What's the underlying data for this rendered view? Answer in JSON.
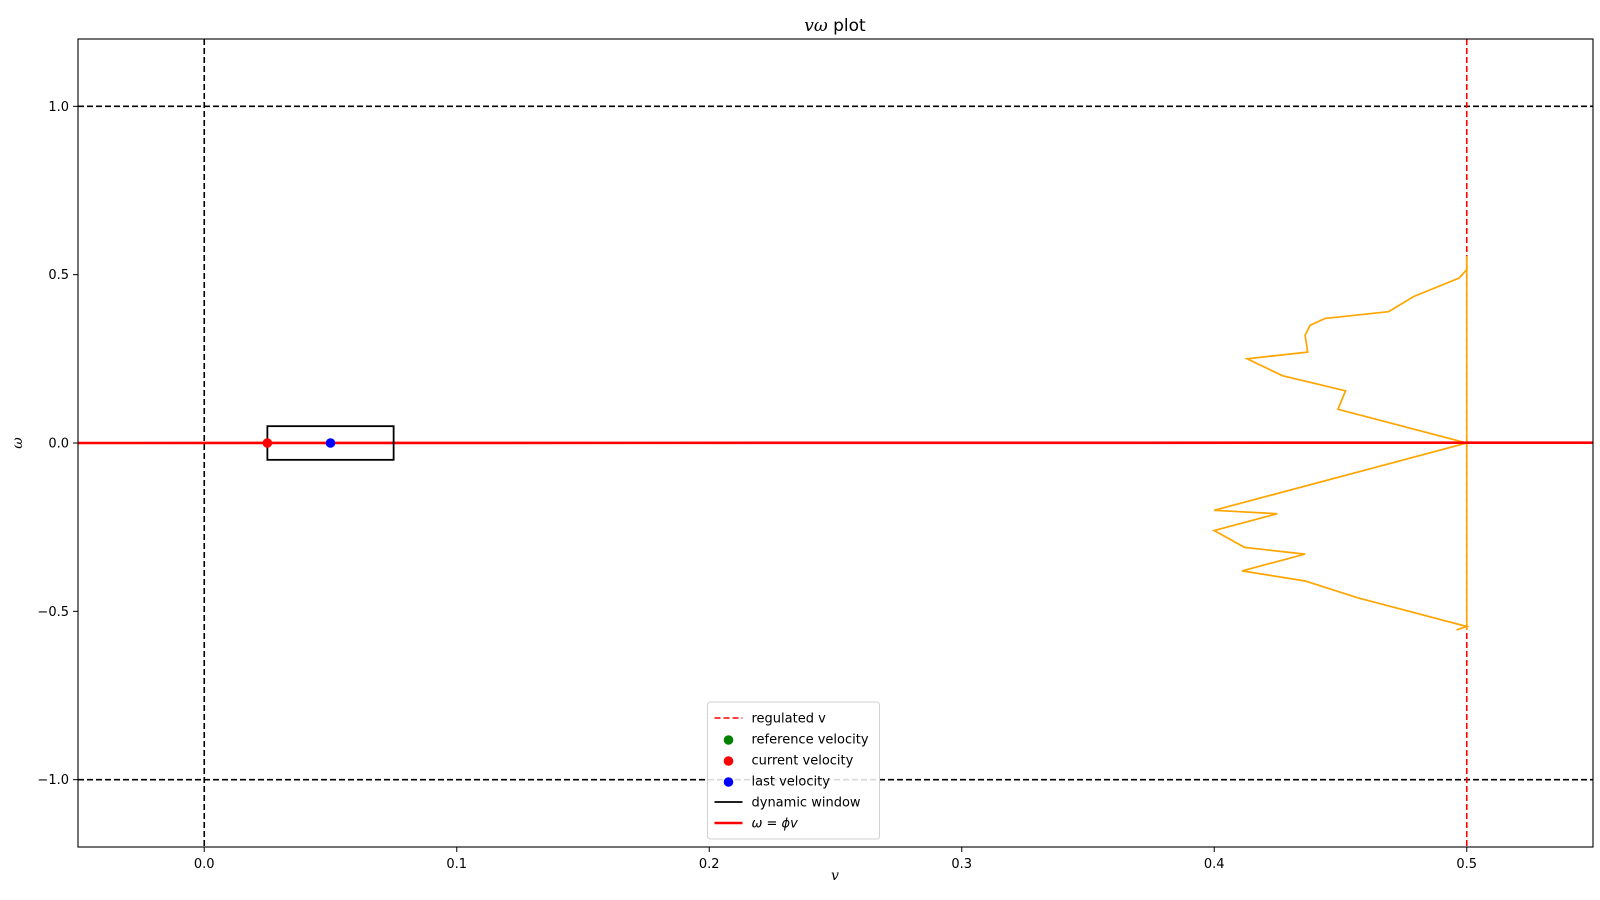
{
  "chart_data": {
    "type": "line",
    "title_symbol": "vω",
    "title_rest": " plot",
    "xlabel": "v",
    "ylabel": "ω",
    "xlim": [
      -0.05,
      0.55
    ],
    "ylim": [
      -1.2,
      1.2
    ],
    "xticks": [
      0.0,
      0.1,
      0.2,
      0.3,
      0.4,
      0.5
    ],
    "xtick_labels": [
      "0.0",
      "0.1",
      "0.2",
      "0.3",
      "0.4",
      "0.5"
    ],
    "yticks": [
      1.0,
      0.5,
      0.0,
      -0.5,
      -1.0
    ],
    "ytick_labels": [
      "1.0",
      "0.5",
      "0.0",
      "−0.5",
      "−1.0"
    ],
    "grid": false,
    "legend_position": "lower center",
    "colors": {
      "regulated": "#ff0000",
      "reference": "#008000",
      "current": "#ff0000",
      "last": "#0000ff",
      "window": "#000000",
      "phi_line": "#ff0000",
      "trajectory": "#ffa500",
      "bounds": "#000000"
    },
    "bounds": {
      "v_min": 0.0,
      "omega_max": 1.0,
      "omega_min": -1.0
    },
    "regulated_v": 0.5,
    "dynamic_window": {
      "v": [
        0.025,
        0.075
      ],
      "omega": [
        -0.05,
        0.05
      ]
    },
    "current_velocity": [
      0.025,
      0.0
    ],
    "last_velocity": [
      0.05,
      0.0
    ],
    "reference_velocity": null,
    "phi_line": {
      "x": [
        -0.05,
        0.55
      ],
      "y": [
        0.0,
        0.001
      ]
    },
    "trajectory": {
      "x": [
        0.5,
        0.5,
        0.497,
        0.479,
        0.469,
        0.444,
        0.438,
        0.436,
        0.437,
        0.413,
        0.427,
        0.452,
        0.449,
        0.5,
        0.4,
        0.425,
        0.4,
        0.412,
        0.436,
        0.411,
        0.436,
        0.457,
        0.5,
        0.496
      ],
      "y": [
        0.555,
        0.515,
        0.49,
        0.435,
        0.39,
        0.37,
        0.35,
        0.32,
        0.27,
        0.25,
        0.2,
        0.155,
        0.1,
        0.0,
        -0.2,
        -0.21,
        -0.26,
        -0.31,
        -0.33,
        -0.38,
        -0.41,
        -0.46,
        -0.545,
        -0.555
      ]
    },
    "vertical_trace": {
      "x": [
        0.5,
        0.5
      ],
      "y": [
        0.555,
        -0.555
      ]
    },
    "legend": [
      {
        "label": "regulated v",
        "kind": "dashed-line",
        "color_key": "regulated"
      },
      {
        "label": "reference velocity",
        "kind": "marker",
        "color_key": "reference"
      },
      {
        "label": "current velocity",
        "kind": "marker",
        "color_key": "current"
      },
      {
        "label": "last velocity",
        "kind": "marker",
        "color_key": "last"
      },
      {
        "label": "dynamic window",
        "kind": "solid-line",
        "color_key": "window"
      },
      {
        "label": "ω = ϕv",
        "kind": "thick-line",
        "color_key": "phi_line"
      }
    ]
  }
}
